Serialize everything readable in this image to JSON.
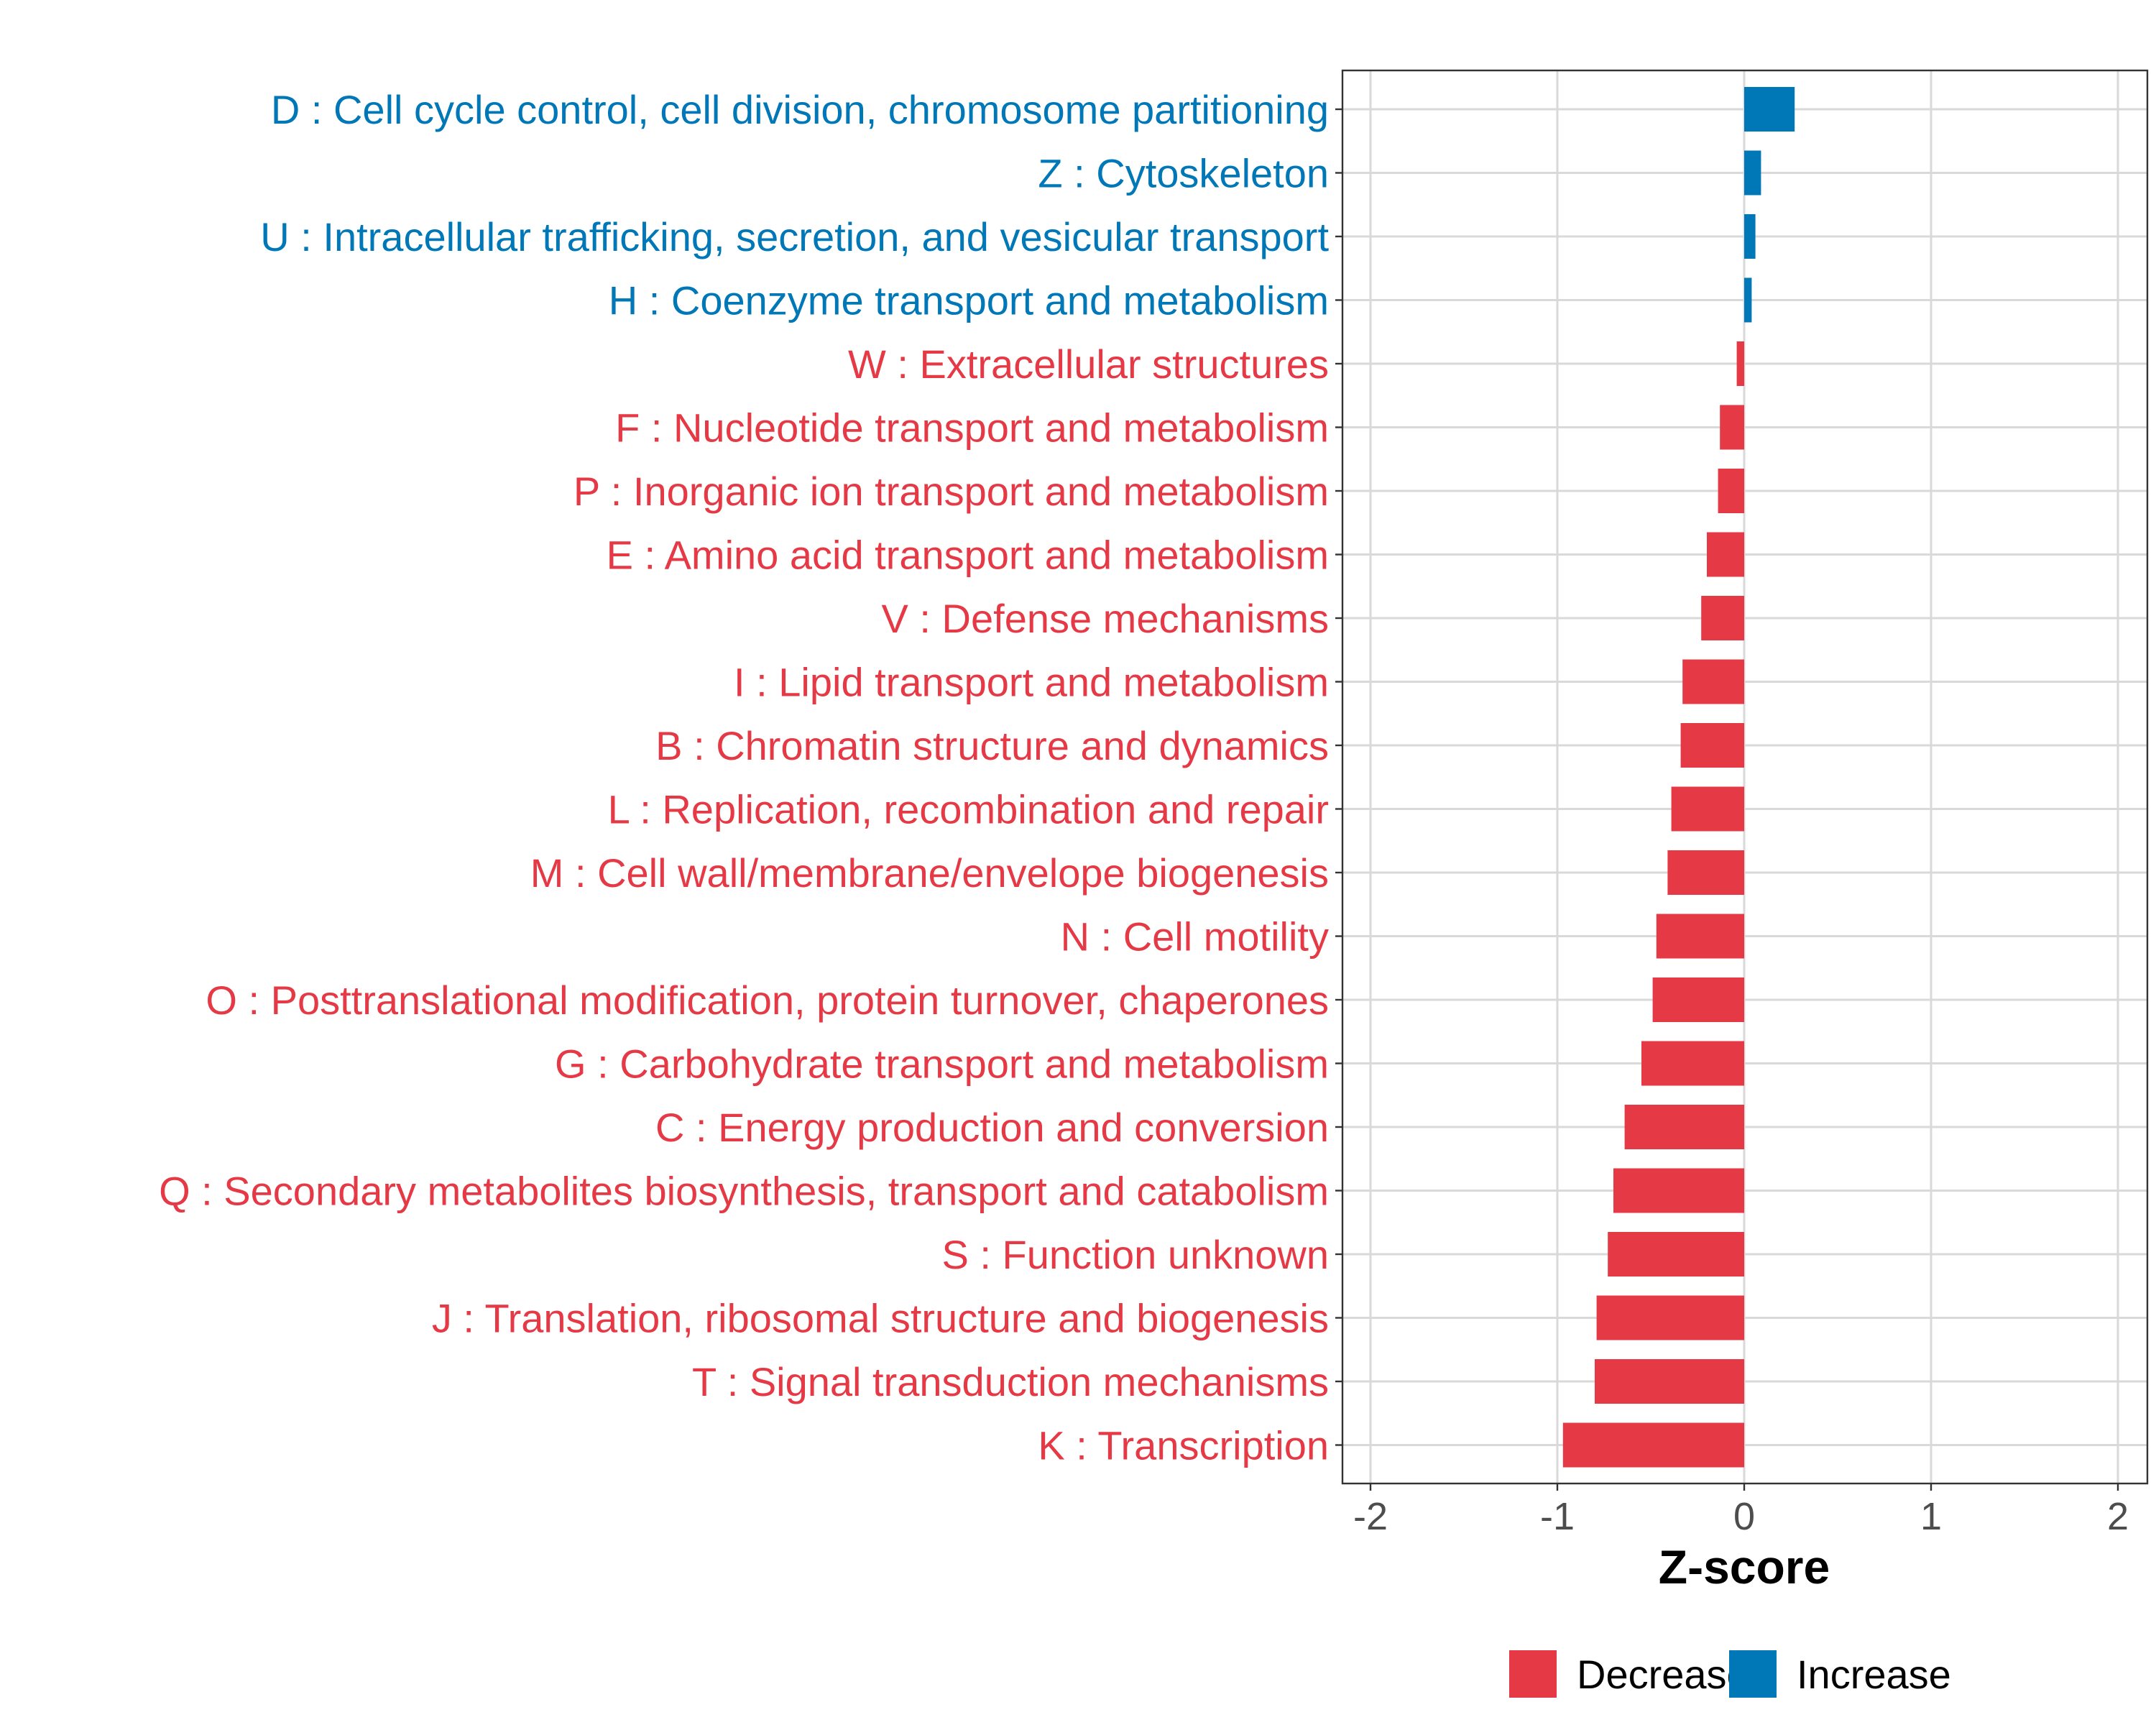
{
  "chart_data": {
    "type": "bar",
    "orientation": "horizontal",
    "title": "",
    "xlabel": "Z-score",
    "ylabel": "",
    "xlim": [
      -2.1,
      2.1
    ],
    "x_ticks": [
      -2,
      -1,
      0,
      1,
      2
    ],
    "x_tick_labels": [
      "-2",
      "-1",
      "0",
      "1",
      "2"
    ],
    "grid": true,
    "legend_position": "bottom",
    "colors": {
      "Decrease": "#e63946",
      "Increase": "#0077b6"
    },
    "categories": [
      "D : Cell cycle control, cell division, chromosome partitioning",
      "Z : Cytoskeleton",
      "U : Intracellular trafficking, secretion, and vesicular transport",
      "H : Coenzyme transport and metabolism",
      "W : Extracellular structures",
      "F : Nucleotide transport and metabolism",
      "P : Inorganic ion transport and metabolism",
      "E : Amino acid transport and metabolism",
      "V : Defense mechanisms",
      "I : Lipid transport and metabolism",
      "B : Chromatin structure and dynamics",
      "L : Replication, recombination and repair",
      "M : Cell wall/membrane/envelope biogenesis",
      "N : Cell motility",
      "O : Posttranslational modification, protein turnover, chaperones",
      "G : Carbohydrate transport and metabolism",
      "C : Energy production and conversion",
      "Q : Secondary metabolites biosynthesis, transport and catabolism",
      "S : Function unknown",
      "J : Translation, ribosomal structure and biogenesis",
      "T : Signal transduction mechanisms",
      "K : Transcription"
    ],
    "values": [
      0.27,
      0.09,
      0.06,
      0.04,
      -0.04,
      -0.13,
      -0.14,
      -0.2,
      -0.23,
      -0.33,
      -0.34,
      -0.39,
      -0.41,
      -0.47,
      -0.49,
      -0.55,
      -0.64,
      -0.7,
      -0.73,
      -0.79,
      -0.8,
      -0.97
    ],
    "groups": [
      "Increase",
      "Increase",
      "Increase",
      "Increase",
      "Decrease",
      "Decrease",
      "Decrease",
      "Decrease",
      "Decrease",
      "Decrease",
      "Decrease",
      "Decrease",
      "Decrease",
      "Decrease",
      "Decrease",
      "Decrease",
      "Decrease",
      "Decrease",
      "Decrease",
      "Decrease",
      "Decrease",
      "Decrease"
    ],
    "legend": [
      "Decrease",
      "Increase"
    ]
  }
}
